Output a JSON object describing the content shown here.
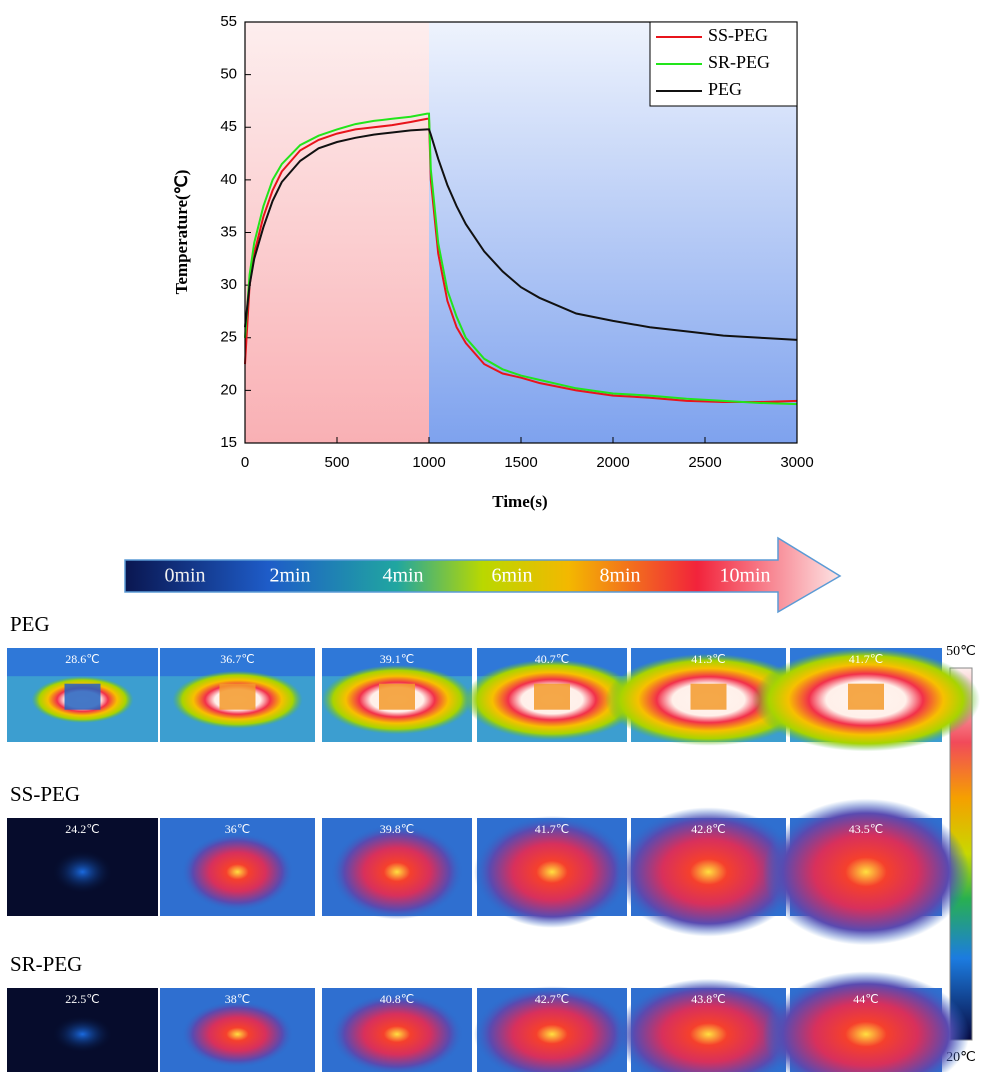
{
  "chart_data": {
    "type": "line",
    "xlabel": "Time(s)",
    "ylabel": "Temperature(℃)",
    "xlim": [
      0,
      3000
    ],
    "ylim": [
      15,
      55
    ],
    "xticks": [
      0,
      500,
      1000,
      1500,
      2000,
      2500,
      3000
    ],
    "yticks": [
      15,
      20,
      25,
      30,
      35,
      40,
      45,
      50,
      55
    ],
    "x": [
      0,
      25,
      50,
      100,
      150,
      200,
      300,
      400,
      500,
      600,
      700,
      800,
      900,
      990,
      1000,
      1010,
      1050,
      1100,
      1150,
      1200,
      1300,
      1400,
      1500,
      1600,
      1800,
      2000,
      2200,
      2400,
      2600,
      2800,
      3000
    ],
    "series": [
      {
        "name": "SS-PEG",
        "color": "#e8141b",
        "values": [
          22.5,
          30,
          33,
          36.5,
          39,
          40.8,
          42.8,
          43.8,
          44.4,
          44.8,
          45,
          45.2,
          45.5,
          45.8,
          45.8,
          40,
          33,
          28.5,
          26,
          24.5,
          22.5,
          21.6,
          21.2,
          20.7,
          20,
          19.5,
          19.3,
          19,
          18.9,
          18.9,
          19
        ]
      },
      {
        "name": "SR-PEG",
        "color": "#22e51b",
        "values": [
          25,
          31,
          34,
          37.5,
          40,
          41.5,
          43.3,
          44.2,
          44.8,
          45.3,
          45.6,
          45.8,
          46,
          46.3,
          46.3,
          41,
          34,
          29.5,
          27,
          25,
          23,
          22,
          21.4,
          21,
          20.2,
          19.7,
          19.5,
          19.2,
          19,
          18.8,
          18.7
        ]
      },
      {
        "name": "PEG",
        "color": "#111111",
        "values": [
          26,
          30,
          32.5,
          35.5,
          38,
          39.8,
          41.8,
          43,
          43.6,
          44,
          44.3,
          44.5,
          44.7,
          44.8,
          44.8,
          44.3,
          42,
          39.5,
          37.5,
          35.8,
          33.2,
          31.3,
          29.8,
          28.8,
          27.3,
          26.6,
          26,
          25.6,
          25.2,
          25,
          24.8
        ]
      }
    ],
    "legend": "upper right"
  },
  "timeline": {
    "labels": [
      "0min",
      "2min",
      "4min",
      "6min",
      "8min",
      "10min"
    ]
  },
  "thermal": {
    "rows": [
      {
        "label": "PEG",
        "temps": [
          "28.6℃",
          "36.7℃",
          "39.1℃",
          "40.7℃",
          "41.3℃",
          "41.7℃"
        ]
      },
      {
        "label": "SS-PEG",
        "temps": [
          "24.2℃",
          "36℃",
          "39.8℃",
          "41.7℃",
          "42.8℃",
          "43.5℃"
        ]
      },
      {
        "label": "SR-PEG",
        "temps": [
          "22.5℃",
          "38℃",
          "40.8℃",
          "42.7℃",
          "43.8℃",
          "44℃"
        ]
      }
    ]
  },
  "colorbar": {
    "max": "50℃",
    "min": "20℃"
  }
}
